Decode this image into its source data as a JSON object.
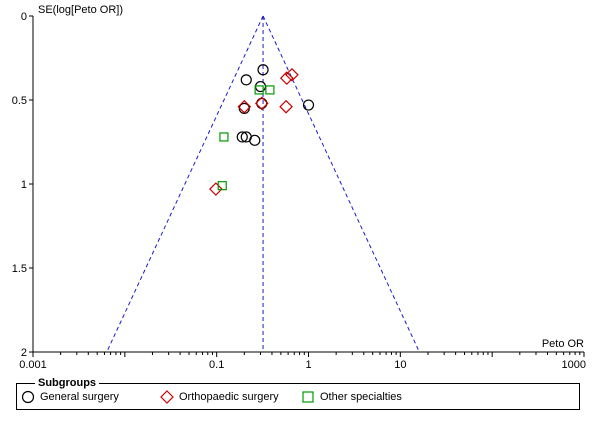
{
  "chart_data": {
    "type": "scatter",
    "subtype": "funnel-plot",
    "title": "",
    "xlabel": "Peto OR",
    "ylabel": "SE(log[Peto OR])",
    "x_scale": "log",
    "xlim": [
      0.001,
      1000
    ],
    "ylim": [
      0,
      2
    ],
    "y_inverted": true,
    "x_ticks": [
      "0.001",
      "0.1",
      "1",
      "10",
      "1000"
    ],
    "x_tick_values": [
      0.001,
      0.1,
      1,
      10,
      1000
    ],
    "y_ticks": [
      "0",
      "0.5",
      "1",
      "1.5",
      "2"
    ],
    "y_tick_values": [
      0,
      0.5,
      1,
      1.5,
      2
    ],
    "pooled_estimate": 0.32,
    "legend_title": "Subgroups",
    "legend_position": "bottom",
    "series": [
      {
        "name": "General surgery",
        "marker": "circle",
        "color": "#000000",
        "points": [
          {
            "x": 0.32,
            "y": 0.32
          },
          {
            "x": 0.21,
            "y": 0.38
          },
          {
            "x": 0.3,
            "y": 0.42
          },
          {
            "x": 0.31,
            "y": 0.52
          },
          {
            "x": 1.0,
            "y": 0.53
          },
          {
            "x": 0.2,
            "y": 0.55
          },
          {
            "x": 0.19,
            "y": 0.72
          },
          {
            "x": 0.21,
            "y": 0.72
          },
          {
            "x": 0.26,
            "y": 0.74
          }
        ]
      },
      {
        "name": "Orthopaedic surgery",
        "marker": "diamond",
        "color": "#cc0000",
        "points": [
          {
            "x": 0.66,
            "y": 0.35
          },
          {
            "x": 0.58,
            "y": 0.37
          },
          {
            "x": 0.31,
            "y": 0.52
          },
          {
            "x": 0.2,
            "y": 0.54
          },
          {
            "x": 0.57,
            "y": 0.54
          },
          {
            "x": 0.098,
            "y": 1.03
          }
        ]
      },
      {
        "name": "Other specialties",
        "marker": "square",
        "color": "#009900",
        "points": [
          {
            "x": 0.29,
            "y": 0.44
          },
          {
            "x": 0.38,
            "y": 0.44
          },
          {
            "x": 0.12,
            "y": 0.72
          },
          {
            "x": 0.115,
            "y": 1.01
          }
        ]
      }
    ]
  }
}
